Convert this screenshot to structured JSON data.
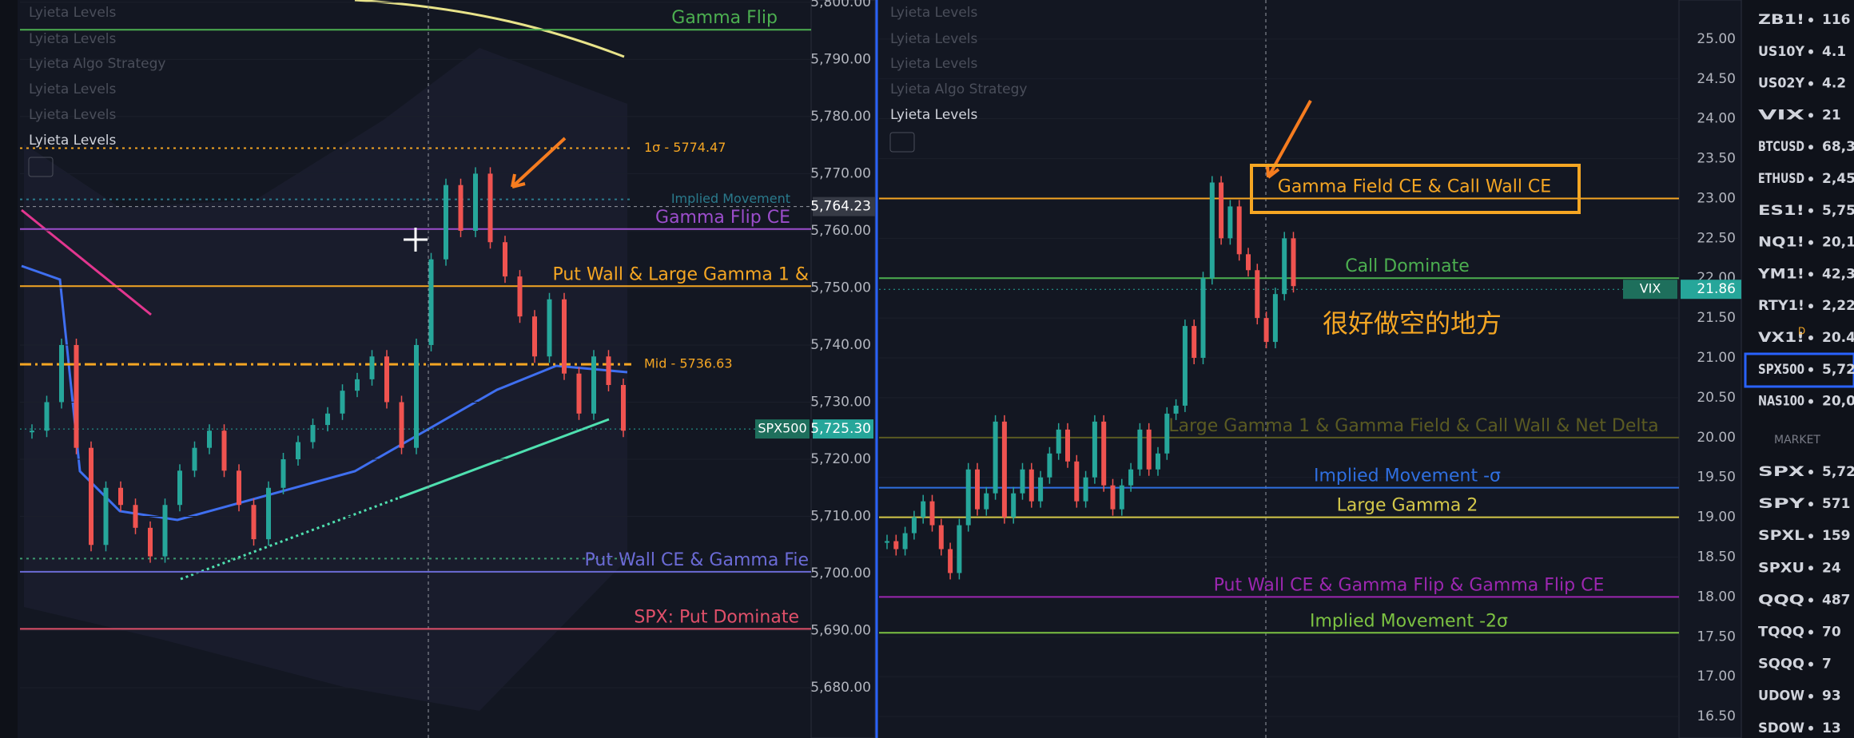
{
  "left_chart": {
    "indicators": [
      "Lyieta Levels",
      "Lyieta Levels",
      "Lyieta Algo Strategy",
      "Lyieta Levels",
      "Lyieta Levels",
      "Lyieta Levels"
    ],
    "ylim": [
      5671.2,
      5800.4
    ],
    "yticks": [
      {
        "value": 5800,
        "label": "5,800.00"
      },
      {
        "value": 5790,
        "label": "5,790.00"
      },
      {
        "value": 5780,
        "label": "5,780.00"
      },
      {
        "value": 5770,
        "label": "5,770.00"
      },
      {
        "value": 5760,
        "label": "5,760.00"
      },
      {
        "value": 5750,
        "label": "5,750.00"
      },
      {
        "value": 5740,
        "label": "5,740.00"
      },
      {
        "value": 5730,
        "label": "5,730.00"
      },
      {
        "value": 5720,
        "label": "5,720.00"
      },
      {
        "value": 5710,
        "label": "5,710.00"
      },
      {
        "value": 5700,
        "label": "5,700.00"
      },
      {
        "value": 5690,
        "label": "5,690.00"
      },
      {
        "value": 5680,
        "label": "5,680.00"
      }
    ],
    "levels": [
      {
        "label": "Gamma Flip",
        "price": 5795.2,
        "color": "#4caf50",
        "line_style": "solid"
      },
      {
        "label": "1σ - 5774.47",
        "price": 5774.47,
        "color": "#f5a623",
        "line_style": "dotted"
      },
      {
        "label": "Implied Movement",
        "price": 5765.5,
        "color": "#2a7a8c",
        "line_style": "dotted"
      },
      {
        "label": "Gamma Flip CE",
        "price": 5760.3,
        "color": "#9c4dcc",
        "line_style": "solid"
      },
      {
        "label": "Put Wall & Large Gamma 1 &",
        "price": 5750.3,
        "color": "#f5a623",
        "line_style": "solid"
      },
      {
        "label": "Mid - 5736.63",
        "price": 5736.63,
        "color": "#f5a623",
        "line_style": "dashdot"
      },
      {
        "price": 5702.6,
        "color": "#3d9970",
        "line_style": "dotted"
      },
      {
        "label": "Put Wall CE & Gamma Fie",
        "price": 5700.3,
        "color": "#6b6bd6",
        "line_style": "solid"
      },
      {
        "label": "SPX: Put Dominate",
        "price": 5690.3,
        "color": "#e0506a",
        "line_style": "solid"
      }
    ],
    "crosshair": {
      "value": 5764.23,
      "label": "5,764.23"
    },
    "price_tag": {
      "name": "SPX500",
      "value": 5725.3,
      "label": "5,725.30"
    },
    "closes": [
      5725,
      5730,
      5740,
      5722,
      5705,
      5715,
      5712,
      5708,
      5703,
      5712,
      5718,
      5722,
      5725,
      5718,
      5712,
      5706,
      5715,
      5720,
      5723,
      5726,
      5728,
      5732,
      5734,
      5738,
      5730,
      5722,
      5740,
      5755,
      5768,
      5760,
      5770,
      5758,
      5752,
      5745,
      5738,
      5748,
      5735,
      5728,
      5738,
      5733,
      5725
    ]
  },
  "right_chart": {
    "indicators": [
      "Lyieta Levels",
      "Lyieta Levels",
      "Lyieta Levels",
      "Lyieta Algo Strategy",
      "Lyieta Levels"
    ],
    "ylim": [
      16.23,
      25.49
    ],
    "yticks": [
      {
        "value": 25,
        "label": "25.00"
      },
      {
        "value": 24.5,
        "label": "24.50"
      },
      {
        "value": 24,
        "label": "24.00"
      },
      {
        "value": 23.5,
        "label": "23.50"
      },
      {
        "value": 23,
        "label": "23.00"
      },
      {
        "value": 22.5,
        "label": "22.50"
      },
      {
        "value": 22,
        "label": "22.00"
      },
      {
        "value": 21.5,
        "label": "21.50"
      },
      {
        "value": 21,
        "label": "21.00"
      },
      {
        "value": 20.5,
        "label": "20.50"
      },
      {
        "value": 20,
        "label": "20.00"
      },
      {
        "value": 19.5,
        "label": "19.50"
      },
      {
        "value": 19,
        "label": "19.00"
      },
      {
        "value": 18.5,
        "label": "18.50"
      },
      {
        "value": 18,
        "label": "18.00"
      },
      {
        "value": 17.5,
        "label": "17.50"
      },
      {
        "value": 17,
        "label": "17.00"
      },
      {
        "value": 16.5,
        "label": "16.50"
      }
    ],
    "levels": [
      {
        "label": "Gamma Field CE & Call Wall CE",
        "price": 23.0,
        "color": "#f5a623",
        "line_style": "solid"
      },
      {
        "label": "Call Dominate",
        "price": 22.0,
        "color": "#4caf50",
        "line_style": "solid"
      },
      {
        "label": "Large Gamma 1 & Gamma Field & Call Wall & Net Delta",
        "price": 20.0,
        "color": "#5a5a22",
        "line_style": "solid"
      },
      {
        "label": "Implied Movement -σ",
        "price": 19.37,
        "color": "#2f6fe0",
        "line_style": "solid"
      },
      {
        "label": "Large Gamma 2",
        "price": 19.0,
        "color": "#d4c84a",
        "line_style": "solid"
      },
      {
        "label": "Put Wall CE & Gamma Flip & Gamma Flip CE",
        "price": 18.0,
        "color": "#9c27b0",
        "line_style": "solid"
      },
      {
        "label": "Implied Movement -2σ",
        "price": 17.55,
        "color": "#7cc242",
        "line_style": "solid"
      }
    ],
    "price_tag": {
      "name": "VIX",
      "value": 21.86,
      "label": "21.86"
    },
    "annotation": "很好做空的地方",
    "closes": [
      18.7,
      18.6,
      18.8,
      19.0,
      19.2,
      18.9,
      18.6,
      18.3,
      18.9,
      19.6,
      19.1,
      19.3,
      20.2,
      19.0,
      19.3,
      19.6,
      19.2,
      19.5,
      19.8,
      20.1,
      19.7,
      19.2,
      19.5,
      20.2,
      19.4,
      19.1,
      19.4,
      19.6,
      20.1,
      19.6,
      19.8,
      20.3,
      20.4,
      21.4,
      21.0,
      22.0,
      23.2,
      22.5,
      22.9,
      22.3,
      22.1,
      21.5,
      21.2,
      21.8,
      22.5,
      21.9
    ]
  },
  "watchlist": {
    "rows": [
      {
        "symbol": "ZB1!",
        "value": "116"
      },
      {
        "symbol": "US10Y",
        "value": "4.1"
      },
      {
        "symbol": "US02Y",
        "value": "4.2"
      },
      {
        "symbol": "VIX",
        "value": "21"
      },
      {
        "symbol": "BTCUSD",
        "value": "68,3"
      },
      {
        "symbol": "ETHUSD",
        "value": "2,45"
      },
      {
        "symbol": "ES1!",
        "value": "5,75"
      },
      {
        "symbol": "NQ1!",
        "value": "20,1"
      },
      {
        "symbol": "YM1!",
        "value": "42,3"
      },
      {
        "symbol": "RTY1!",
        "value": "2,22"
      },
      {
        "symbol": "VX1!",
        "flag": "D",
        "value": "20.4"
      },
      {
        "symbol": "SPX500",
        "value": "5,72"
      },
      {
        "symbol": "NAS100",
        "value": "20,0"
      }
    ],
    "section": "MARKET",
    "market_rows": [
      {
        "symbol": "SPX",
        "value": "5,72"
      },
      {
        "symbol": "SPY",
        "value": "571"
      },
      {
        "symbol": "SPXL",
        "value": "159"
      },
      {
        "symbol": "SPXU",
        "value": "24"
      },
      {
        "symbol": "QQQ",
        "value": "487"
      },
      {
        "symbol": "TQQQ",
        "value": "70"
      },
      {
        "symbol": "SQQQ",
        "value": "7"
      },
      {
        "symbol": "UDOW",
        "value": "93"
      },
      {
        "symbol": "SDOW",
        "value": "13"
      }
    ]
  }
}
